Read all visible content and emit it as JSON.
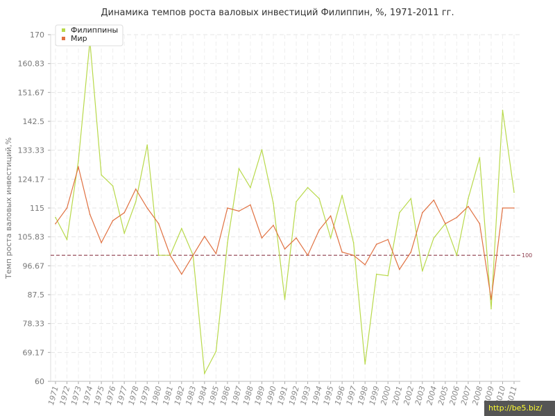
{
  "chart_data": {
    "type": "line",
    "title": "Динамика темпов роста валовых инвестиций Филиппин, %, 1971-2011 гг.",
    "xlabel": "",
    "ylabel": "Темп роста валовых инвестиций,%",
    "ylim": [
      60,
      170
    ],
    "yticks": [
      "60",
      "69.17",
      "78.33",
      "87.5",
      "96.67",
      "105.83",
      "115",
      "124.17",
      "133.33",
      "142.5",
      "151.67",
      "160.83",
      "170"
    ],
    "grid": true,
    "legend_position": "top-left",
    "x": [
      1971,
      1972,
      1973,
      1974,
      1975,
      1976,
      1977,
      1978,
      1979,
      1980,
      1981,
      1982,
      1983,
      1984,
      1985,
      1986,
      1987,
      1988,
      1989,
      1990,
      1991,
      1992,
      1993,
      1994,
      1995,
      1996,
      1997,
      1998,
      1999,
      2000,
      2001,
      2002,
      2003,
      2004,
      2005,
      2006,
      2007,
      2008,
      2009,
      2010,
      2011
    ],
    "series": [
      {
        "name": "Филиппины",
        "color": "#b8d94a",
        "values": [
          112,
          105,
          130,
          168,
          125.5,
          122,
          107,
          117,
          135,
          100,
          100,
          108.5,
          100,
          62.5,
          69.5,
          104,
          127.5,
          121.5,
          133.5,
          116.5,
          86,
          117,
          121.5,
          118,
          105.5,
          119,
          104,
          65.5,
          94,
          93.5,
          113.5,
          118,
          95,
          105.5,
          110,
          100,
          118,
          131,
          83,
          146,
          120
        ]
      },
      {
        "name": "Мир",
        "color": "#e07040",
        "values": [
          110,
          115,
          128,
          113,
          104,
          111,
          113.5,
          121,
          115,
          110,
          100,
          94,
          100,
          106,
          100.5,
          115,
          114,
          116,
          105.5,
          109.5,
          102,
          105.5,
          100,
          108,
          112.5,
          101,
          100,
          97,
          103.5,
          105,
          95.5,
          101,
          113.5,
          117.5,
          110,
          112,
          115.5,
          110,
          86,
          115,
          115
        ]
      }
    ],
    "reference_line": {
      "value": 100,
      "label": "100",
      "color": "#8b3a4a"
    }
  },
  "watermark": "http://be5.biz/"
}
